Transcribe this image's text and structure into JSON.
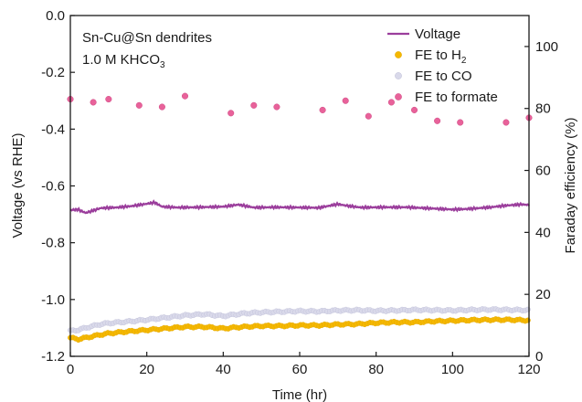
{
  "chart_data": {
    "type": "scatter",
    "annotation": {
      "line1": "Sn-Cu@Sn dendrites",
      "line2_prefix": "1.0 M KHCO",
      "line2_sub": "3"
    },
    "xlabel": "Time (hr)",
    "ylabel_left": "Voltage (vs RHE)",
    "ylabel_right": "Faraday efficiency (%)",
    "xlim": [
      0,
      120
    ],
    "ylim_left": [
      -1.2,
      0.0
    ],
    "ylim_right": [
      0,
      110
    ],
    "x_ticks": [
      0,
      20,
      40,
      60,
      80,
      100,
      120
    ],
    "y_left_ticks": [
      0.0,
      -0.2,
      -0.4,
      -0.6,
      -0.8,
      -1.0,
      -1.2
    ],
    "y_right_ticks": [
      0,
      20,
      40,
      60,
      80,
      100
    ],
    "legend": {
      "position": "top-right",
      "entries": [
        {
          "label": "Voltage",
          "sub": "",
          "color": "#9b3e9c",
          "marker": "line"
        },
        {
          "label": "FE to H",
          "sub": "2",
          "color": "#f5b800",
          "marker": "dot"
        },
        {
          "label": "FE to CO",
          "sub": "",
          "color": "#d9d9ea",
          "marker": "dot"
        },
        {
          "label": "FE to formate",
          "sub": "",
          "color": "#e8629a",
          "marker": "dot"
        }
      ]
    },
    "series": [
      {
        "name": "Voltage",
        "axis": "left",
        "color": "#9b3e9c",
        "x": [
          0,
          2,
          4,
          8,
          12,
          16,
          20,
          22,
          24,
          28,
          34,
          40,
          44,
          48,
          54,
          60,
          65,
          70,
          72,
          76,
          82,
          88,
          94,
          100,
          104,
          110,
          114,
          118,
          120
        ],
        "y": [
          -0.685,
          -0.683,
          -0.695,
          -0.678,
          -0.676,
          -0.671,
          -0.663,
          -0.658,
          -0.673,
          -0.676,
          -0.675,
          -0.673,
          -0.666,
          -0.676,
          -0.675,
          -0.676,
          -0.677,
          -0.664,
          -0.669,
          -0.676,
          -0.675,
          -0.675,
          -0.679,
          -0.683,
          -0.681,
          -0.675,
          -0.669,
          -0.665,
          -0.667
        ]
      },
      {
        "name": "FE to H2",
        "axis": "right",
        "color": "#f5b800",
        "x": [
          0,
          2,
          4,
          6,
          8,
          10,
          15,
          20,
          25,
          30,
          35,
          40,
          45,
          50,
          55,
          60,
          65,
          70,
          75,
          80,
          85,
          90,
          95,
          100,
          105,
          110,
          115,
          120
        ],
        "y": [
          6.0,
          5.5,
          6.0,
          6.5,
          7.0,
          7.4,
          8.0,
          8.5,
          9.0,
          9.5,
          9.5,
          9.0,
          9.5,
          9.8,
          9.8,
          10.0,
          10.0,
          10.3,
          10.4,
          10.8,
          11.0,
          11.0,
          11.3,
          11.5,
          11.7,
          11.8,
          11.8,
          11.6
        ]
      },
      {
        "name": "FE to CO",
        "axis": "right",
        "color": "#d9d9ea",
        "x": [
          0,
          2,
          4,
          6,
          8,
          10,
          15,
          20,
          25,
          30,
          35,
          40,
          45,
          50,
          55,
          60,
          65,
          70,
          75,
          80,
          85,
          90,
          95,
          100,
          105,
          110,
          115,
          120
        ],
        "y": [
          8.2,
          8.5,
          9.2,
          9.8,
          10.4,
          10.7,
          11.2,
          11.8,
          12.5,
          13.2,
          13.6,
          13.0,
          13.8,
          14.2,
          14.4,
          14.6,
          14.5,
          14.8,
          14.9,
          14.7,
          14.8,
          15.0,
          14.9,
          14.8,
          15.0,
          15.1,
          15.0,
          14.9
        ]
      },
      {
        "name": "FE to formate",
        "axis": "right",
        "color": "#e8629a",
        "x": [
          0,
          6,
          10,
          18,
          24,
          30,
          42,
          48,
          54,
          66,
          72,
          78,
          84,
          90,
          96,
          102,
          114,
          120
        ],
        "y": [
          83,
          82,
          83,
          81,
          80.5,
          84,
          78.5,
          81,
          80.5,
          79.5,
          82.5,
          77.5,
          82,
          79.5,
          76,
          75.5,
          75.5,
          77
        ]
      }
    ]
  }
}
